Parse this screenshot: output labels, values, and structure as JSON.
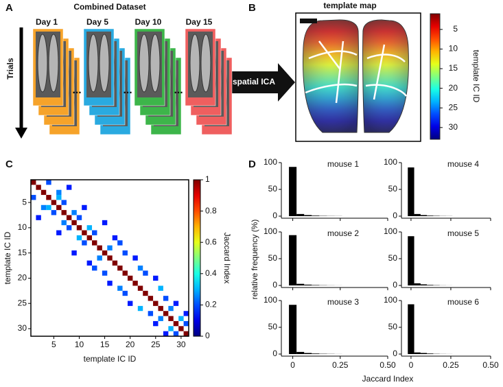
{
  "panel_labels": [
    "A",
    "B",
    "C",
    "D"
  ],
  "panel_a": {
    "title": "Combined Dataset",
    "days": [
      "Day 1",
      "Day 5",
      "Day 10",
      "Day 15"
    ],
    "colors": [
      "#f6a32a",
      "#2aaae0",
      "#3db54a",
      "#ef5f5f"
    ],
    "trials_label": "Trials",
    "ellipsis": "...",
    "arrow_label": "spatial ICA"
  },
  "panel_b": {
    "title": "template map",
    "colorbar": {
      "label": "template IC ID",
      "lim": [
        1,
        33
      ],
      "ticks": [
        5,
        10,
        15,
        20,
        25,
        30
      ]
    }
  },
  "panel_d": {
    "ylabel": "relative frequency (%)",
    "xlabel": "Jaccard Index"
  },
  "chart_data": [
    {
      "type": "heatmap",
      "xlabel": "template IC ID",
      "ylabel": "template IC ID",
      "xlim": [
        0.5,
        31.5
      ],
      "ylim": [
        0.5,
        31.5
      ],
      "xticks": [
        5,
        10,
        15,
        20,
        25,
        30
      ],
      "yticks": [
        5,
        10,
        15,
        20,
        25,
        30
      ],
      "colorbar": {
        "label": "Jaccard Index",
        "lim": [
          0,
          1
        ],
        "ticks": [
          0,
          0.2,
          0.4,
          0.6,
          0.8,
          1
        ]
      },
      "x": [
        1,
        2,
        3,
        4,
        5,
        6,
        7,
        8,
        9,
        10,
        11,
        12,
        13,
        14,
        15,
        16,
        17,
        18,
        19,
        20,
        21,
        22,
        23,
        24,
        25,
        26,
        27,
        28,
        29,
        30,
        31,
        1,
        4,
        2,
        8,
        3,
        6,
        4,
        6,
        5,
        7,
        6,
        11,
        7,
        9,
        8,
        10,
        9,
        15,
        10,
        12,
        11,
        13,
        12,
        17,
        13,
        18,
        14,
        16,
        15,
        19,
        16,
        21,
        18,
        22,
        19,
        23,
        20,
        25,
        22,
        26,
        24,
        27,
        25,
        29,
        26,
        28,
        28,
        30,
        29,
        31,
        27,
        31
      ],
      "y": [
        1,
        2,
        3,
        4,
        5,
        6,
        7,
        8,
        9,
        10,
        11,
        12,
        13,
        14,
        15,
        16,
        17,
        18,
        19,
        20,
        21,
        22,
        23,
        24,
        25,
        26,
        27,
        28,
        29,
        30,
        31,
        4,
        1,
        8,
        2,
        6,
        3,
        6,
        4,
        7,
        5,
        11,
        6,
        9,
        7,
        10,
        8,
        15,
        9,
        12,
        10,
        13,
        11,
        17,
        12,
        18,
        13,
        16,
        14,
        19,
        15,
        21,
        16,
        22,
        18,
        23,
        19,
        25,
        20,
        26,
        22,
        27,
        24,
        29,
        25,
        28,
        26,
        30,
        28,
        31,
        29,
        31,
        27
      ],
      "values": [
        1,
        1,
        1,
        1,
        1,
        1,
        1,
        1,
        1,
        1,
        1,
        1,
        1,
        1,
        1,
        1,
        1,
        1,
        1,
        1,
        1,
        1,
        1,
        1,
        1,
        1,
        1,
        1,
        1,
        1,
        1,
        0.2,
        0.2,
        0.15,
        0.15,
        0.25,
        0.25,
        0.3,
        0.3,
        0.2,
        0.2,
        0.15,
        0.15,
        0.25,
        0.25,
        0.2,
        0.2,
        0.15,
        0.15,
        0.3,
        0.3,
        0.2,
        0.2,
        0.15,
        0.15,
        0.2,
        0.2,
        0.25,
        0.25,
        0.2,
        0.2,
        0.15,
        0.15,
        0.25,
        0.25,
        0.2,
        0.2,
        0.15,
        0.15,
        0.3,
        0.3,
        0.2,
        0.2,
        0.15,
        0.15,
        0.25,
        0.25,
        0.3,
        0.3,
        0.2,
        0.2,
        0.15,
        0.15
      ]
    },
    {
      "type": "histogram",
      "title": "mouse 1",
      "bins": [
        -0.02,
        0.02,
        0.06,
        0.1,
        0.14,
        0.18,
        0.22,
        0.26,
        0.3,
        0.34,
        0.38,
        0.42,
        0.46,
        0.5
      ],
      "values": [
        92,
        4,
        2,
        1,
        0.5,
        0.3,
        0.2,
        0,
        0,
        0,
        0,
        0,
        0
      ],
      "color": "#000000",
      "xlim": [
        -0.06,
        0.5
      ],
      "ylim": [
        0,
        100
      ],
      "xticks": [
        0,
        0.25,
        {
          "value": 0.5,
          "label": "0.50"
        }
      ],
      "yticks": [
        0,
        50,
        100
      ]
    },
    {
      "type": "histogram",
      "title": "mouse 2",
      "bins": [
        -0.02,
        0.02,
        0.06,
        0.1,
        0.14,
        0.18,
        0.22,
        0.26,
        0.3,
        0.34,
        0.38,
        0.42,
        0.46,
        0.5
      ],
      "values": [
        94,
        3,
        1.5,
        0.8,
        0.4,
        0.2,
        0.1,
        0,
        0,
        0,
        0,
        0,
        0
      ],
      "color": "#000000",
      "xlim": [
        -0.06,
        0.5
      ],
      "ylim": [
        0,
        100
      ],
      "xticks": [
        0,
        0.25,
        {
          "value": 0.5,
          "label": "0.50"
        }
      ],
      "yticks": [
        0,
        50,
        100
      ]
    },
    {
      "type": "histogram",
      "title": "mouse 3",
      "bins": [
        -0.02,
        0.02,
        0.06,
        0.1,
        0.14,
        0.18,
        0.22,
        0.26,
        0.3,
        0.34,
        0.38,
        0.42,
        0.46,
        0.5
      ],
      "values": [
        92,
        4,
        2,
        1,
        0.5,
        0.3,
        0.1,
        0,
        0,
        0,
        0,
        0,
        0
      ],
      "color": "#000000",
      "xlim": [
        -0.06,
        0.5
      ],
      "ylim": [
        0,
        100
      ],
      "xticks": [
        0,
        0.25,
        {
          "value": 0.5,
          "label": "0.50"
        }
      ],
      "yticks": [
        0,
        50,
        100
      ]
    },
    {
      "type": "histogram",
      "title": "mouse 4",
      "bins": [
        -0.02,
        0.02,
        0.06,
        0.1,
        0.14,
        0.18,
        0.22,
        0.26,
        0.3,
        0.34,
        0.38,
        0.42,
        0.46,
        0.5
      ],
      "values": [
        91,
        4,
        2,
        1,
        0.6,
        0.3,
        0.2,
        0,
        0,
        0,
        0,
        0,
        0
      ],
      "color": "#000000",
      "xlim": [
        -0.06,
        0.5
      ],
      "ylim": [
        0,
        100
      ],
      "xticks": [
        0,
        0.25,
        {
          "value": 0.5,
          "label": "0.50"
        }
      ],
      "yticks": [
        0,
        50,
        100
      ]
    },
    {
      "type": "histogram",
      "title": "mouse 5",
      "bins": [
        -0.02,
        0.02,
        0.06,
        0.1,
        0.14,
        0.18,
        0.22,
        0.26,
        0.3,
        0.34,
        0.38,
        0.42,
        0.46,
        0.5
      ],
      "values": [
        92,
        4,
        2,
        1,
        0.5,
        0.2,
        0.1,
        0,
        0,
        0,
        0,
        0,
        0
      ],
      "color": "#000000",
      "xlim": [
        -0.06,
        0.5
      ],
      "ylim": [
        0,
        100
      ],
      "xticks": [
        0,
        0.25,
        {
          "value": 0.5,
          "label": "0.50"
        }
      ],
      "yticks": [
        0,
        50,
        100
      ]
    },
    {
      "type": "histogram",
      "title": "mouse 6",
      "bins": [
        -0.02,
        0.02,
        0.06,
        0.1,
        0.14,
        0.18,
        0.22,
        0.26,
        0.3,
        0.34,
        0.38,
        0.42,
        0.46,
        0.5
      ],
      "values": [
        93,
        3,
        2,
        1,
        0.4,
        0.2,
        0.1,
        0,
        0,
        0,
        0,
        0,
        0
      ],
      "color": "#000000",
      "xlim": [
        -0.06,
        0.5
      ],
      "ylim": [
        0,
        100
      ],
      "xticks": [
        0,
        0.25,
        {
          "value": 0.5,
          "label": "0.50"
        }
      ],
      "yticks": [
        0,
        50,
        100
      ]
    }
  ]
}
